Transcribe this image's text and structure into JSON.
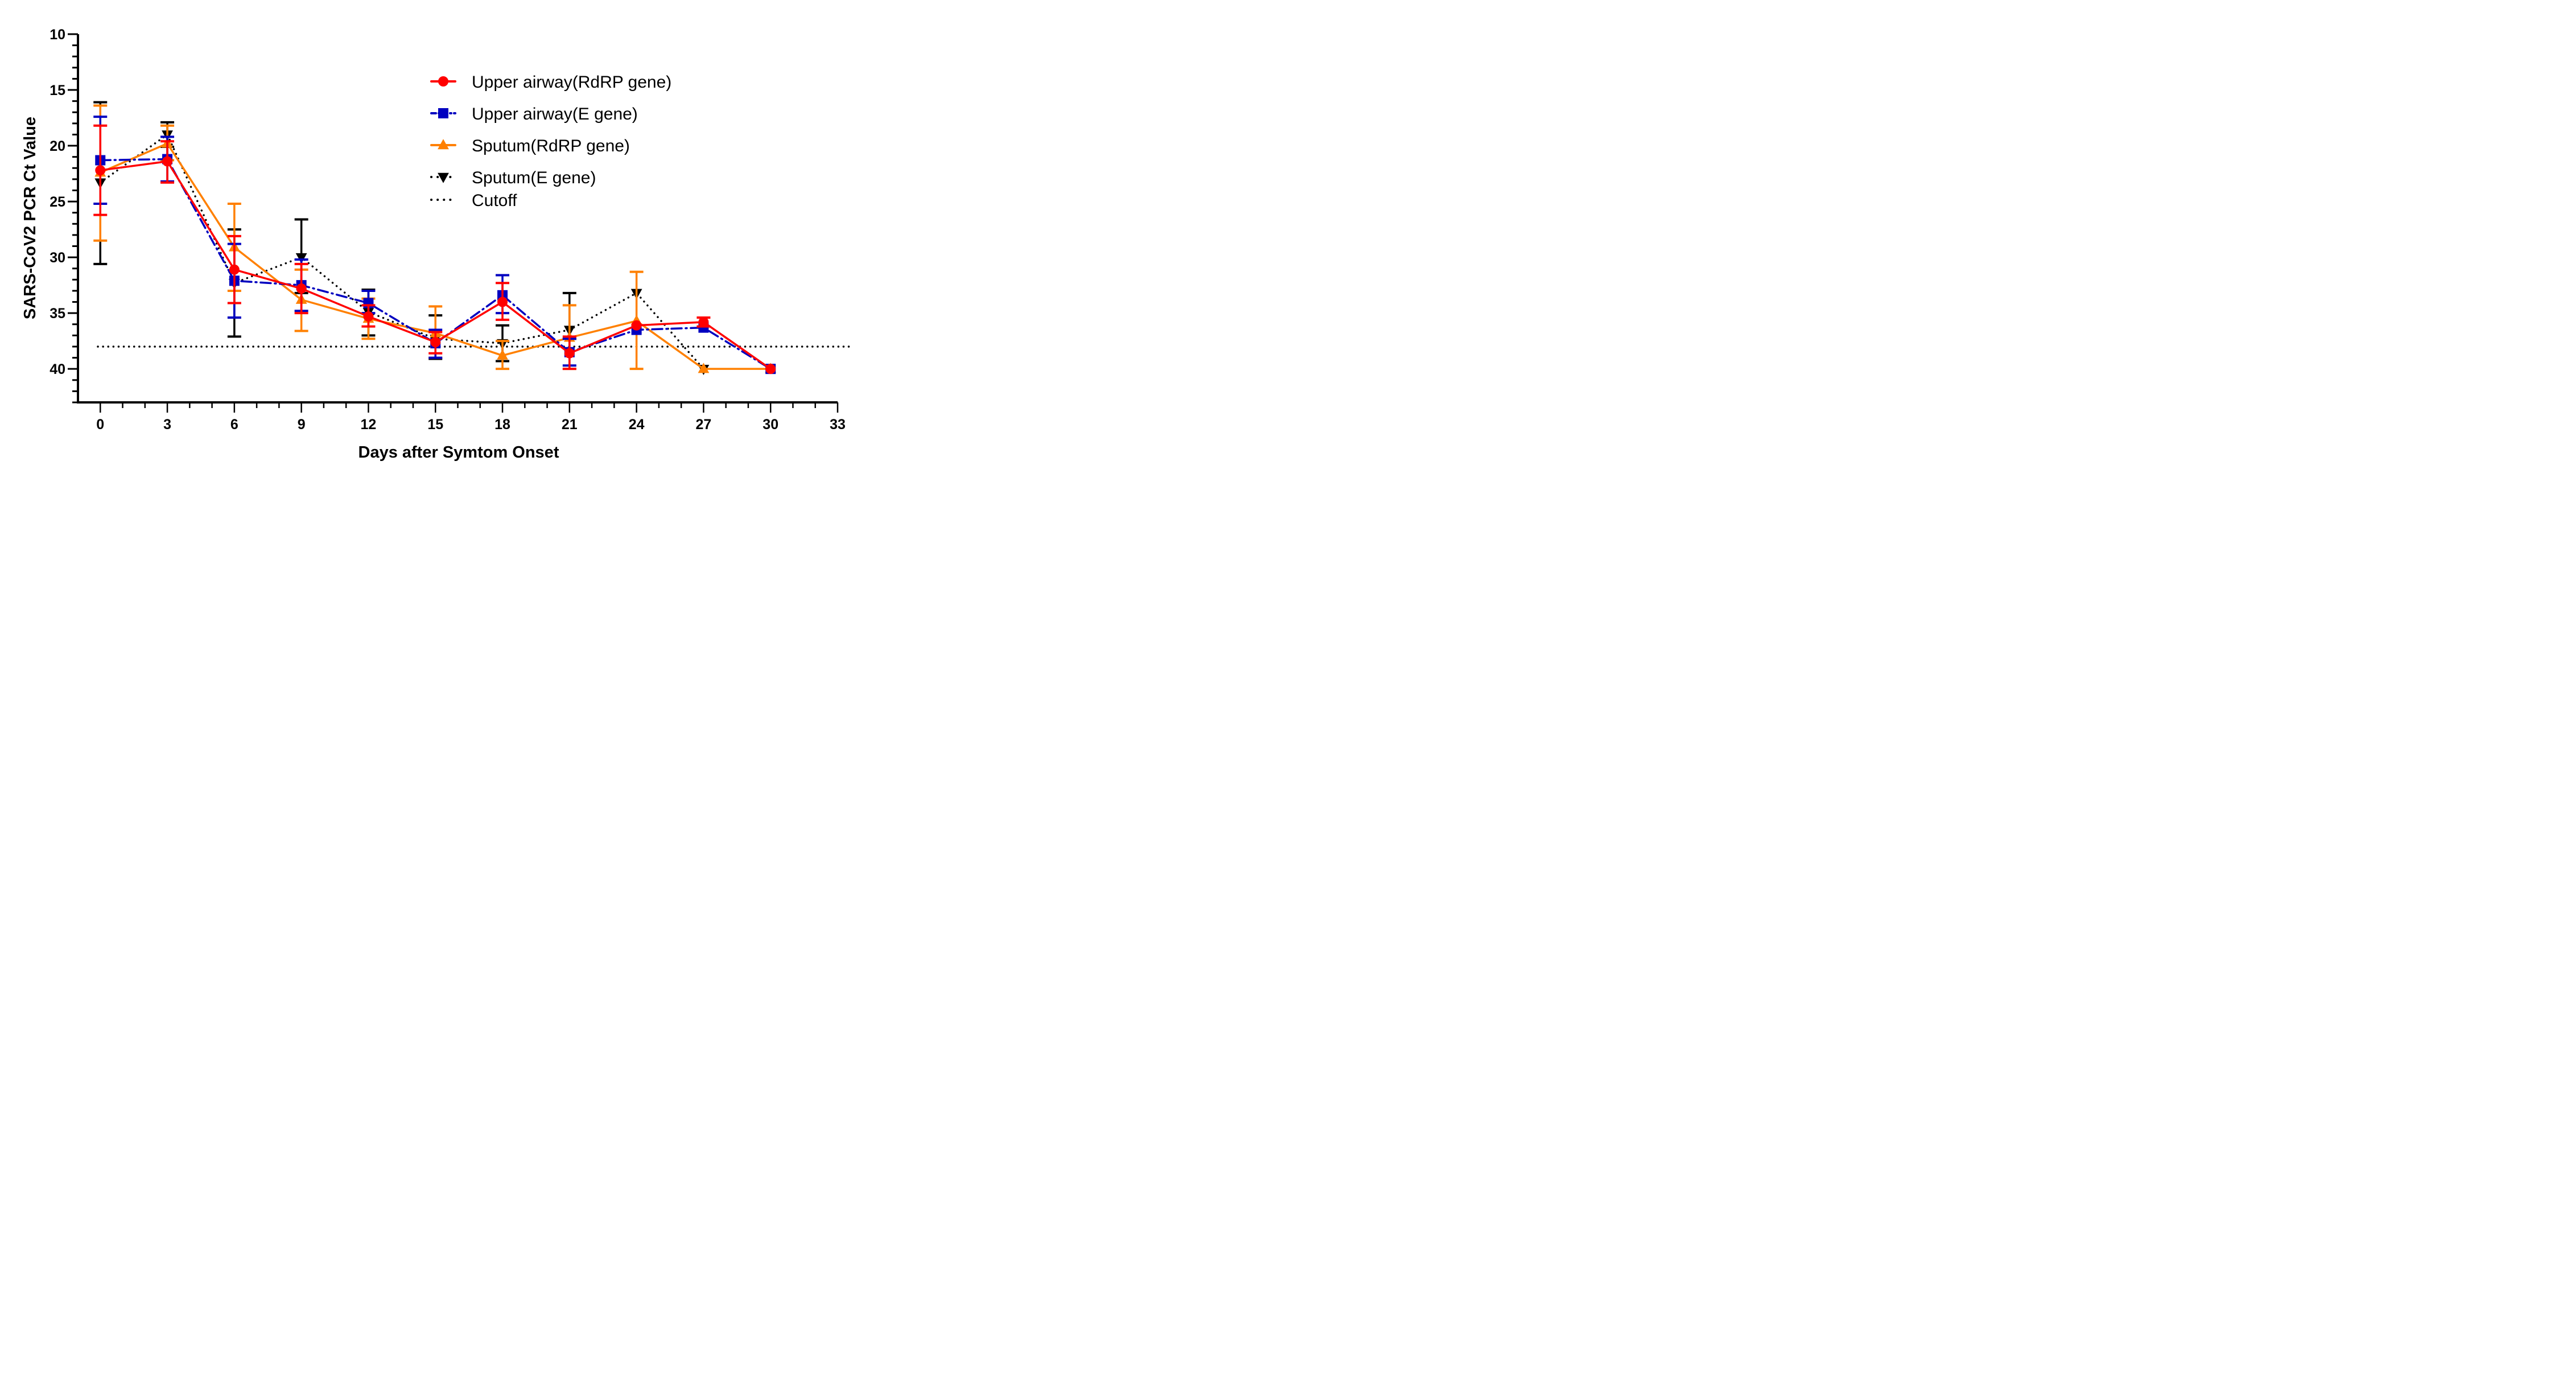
{
  "chart_data": {
    "type": "line",
    "title": "",
    "xlabel": "Days after Symtom Onset",
    "ylabel": "SARS-CoV2 PCR Ct Value",
    "xlim": [
      -1,
      33
    ],
    "ylim": [
      10,
      43
    ],
    "y_inverted": true,
    "x_ticks": [
      0,
      3,
      6,
      9,
      12,
      15,
      18,
      21,
      24,
      27,
      30,
      33
    ],
    "x_tick_labels": [
      "0",
      "3",
      "6",
      "9",
      "12",
      "15",
      "18",
      "21",
      "24",
      "27",
      "30",
      "33"
    ],
    "y_ticks": [
      10,
      15,
      20,
      25,
      30,
      35,
      40
    ],
    "y_tick_labels": [
      "10",
      "15",
      "20",
      "25",
      "30",
      "35",
      "40"
    ],
    "x_minor_step": 1,
    "y_minor_step": 1,
    "grid": false,
    "legend_position": "top-right",
    "cutoff": {
      "label": "Cutoff",
      "value": 38,
      "color": "#000000",
      "style": "dotted"
    },
    "series": [
      {
        "name": "Upper airway(RdRP gene)",
        "color": "#ff0000",
        "marker": "circle",
        "line_style": "solid",
        "x": [
          0,
          3,
          6,
          9,
          12,
          15,
          18,
          21,
          24,
          27,
          30
        ],
        "y": [
          22.2,
          21.4,
          31.1,
          32.8,
          35.3,
          37.6,
          34.0,
          38.6,
          36.1,
          35.8,
          40.0
        ],
        "err_low": [
          18.2,
          19.6,
          28.1,
          30.6,
          34.3,
          36.7,
          32.3,
          37.1,
          36.1,
          35.4,
          40.0
        ],
        "err_high": [
          26.2,
          23.3,
          34.1,
          35.0,
          36.2,
          38.6,
          35.6,
          40.0,
          36.1,
          36.2,
          40.0
        ]
      },
      {
        "name": "Upper airway(E gene)",
        "color": "#0000c0",
        "marker": "square",
        "line_style": "dashdot",
        "x": [
          0,
          3,
          6,
          9,
          12,
          15,
          18,
          21,
          24,
          27,
          30
        ],
        "y": [
          21.3,
          21.2,
          32.1,
          32.5,
          34.1,
          37.7,
          33.4,
          38.5,
          36.5,
          36.3,
          40.0
        ],
        "err_low": [
          17.4,
          19.2,
          28.8,
          30.2,
          33.0,
          36.5,
          31.6,
          37.3,
          36.5,
          36.3,
          40.0
        ],
        "err_high": [
          25.2,
          23.2,
          35.4,
          34.8,
          35.0,
          39.0,
          35.0,
          39.7,
          36.5,
          36.3,
          40.0
        ]
      },
      {
        "name": "Sputum(RdRP gene)",
        "color": "#ff8000",
        "marker": "triangle-up",
        "line_style": "solid",
        "x": [
          0,
          3,
          6,
          9,
          12,
          15,
          18,
          21,
          24,
          27,
          30
        ],
        "y": [
          22.4,
          19.8,
          29.1,
          33.8,
          35.5,
          36.8,
          38.8,
          37.2,
          35.7,
          40.0,
          40.0
        ],
        "err_low": [
          16.4,
          18.2,
          25.2,
          31.1,
          33.7,
          34.4,
          37.5,
          34.3,
          31.3,
          40.0,
          40.0
        ],
        "err_high": [
          28.5,
          21.3,
          33.0,
          36.6,
          37.3,
          39.0,
          40.0,
          40.0,
          40.0,
          40.0,
          40.0
        ]
      },
      {
        "name": "Sputum(E gene)",
        "color": "#000000",
        "marker": "triangle-down",
        "line_style": "dotted",
        "x": [
          0,
          3,
          6,
          9,
          12,
          15,
          18,
          21,
          24,
          27
        ],
        "y": [
          23.3,
          19.0,
          32.3,
          30.0,
          34.9,
          37.3,
          37.7,
          36.5,
          33.2,
          40.0
        ],
        "err_low": [
          16.1,
          17.9,
          27.5,
          26.6,
          32.9,
          35.2,
          36.1,
          33.2,
          33.2,
          40.0
        ],
        "err_high": [
          30.6,
          20.1,
          37.1,
          33.2,
          37.0,
          39.1,
          39.3,
          37.3,
          33.2,
          40.0
        ]
      }
    ]
  }
}
